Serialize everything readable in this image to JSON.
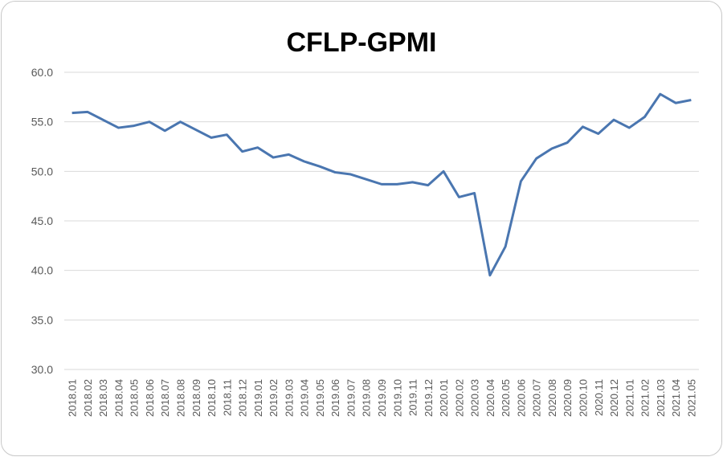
{
  "chart_data": {
    "type": "line",
    "title": "CFLP-GPMI",
    "categories": [
      "2018.01",
      "2018.02",
      "2018.03",
      "2018.04",
      "2018.05",
      "2018.06",
      "2018.07",
      "2018.08",
      "2018.09",
      "2018.10",
      "2018.11",
      "2018.12",
      "2019.01",
      "2019.02",
      "2019.03",
      "2019.04",
      "2019.05",
      "2019.06",
      "2019.07",
      "2019.08",
      "2019.09",
      "2019.10",
      "2019.11",
      "2019.12",
      "2020.01",
      "2020.02",
      "2020.03",
      "2020.04",
      "2020.05",
      "2020.06",
      "2020.07",
      "2020.08",
      "2020.09",
      "2020.10",
      "2020.11",
      "2020.12",
      "2021.01",
      "2021.02",
      "2021.03",
      "2021.04",
      "2021.05"
    ],
    "series": [
      {
        "name": "CFLP-GPMI",
        "color": "#4a76b0",
        "values": [
          55.9,
          56.0,
          55.2,
          54.4,
          54.6,
          55.0,
          54.1,
          55.0,
          54.2,
          53.4,
          53.7,
          52.0,
          52.4,
          51.4,
          51.7,
          51.0,
          50.5,
          49.9,
          49.7,
          49.2,
          48.7,
          48.7,
          48.9,
          48.6,
          50.0,
          47.4,
          47.8,
          39.5,
          42.4,
          49.0,
          51.3,
          52.3,
          52.9,
          54.5,
          53.8,
          55.2,
          54.4,
          55.5,
          57.8,
          56.9,
          57.2
        ]
      }
    ],
    "ylim": [
      30,
      60
    ],
    "yticks": [
      {
        "value": 30,
        "label": "30.0"
      },
      {
        "value": 35,
        "label": "35.0"
      },
      {
        "value": 40,
        "label": "40.0"
      },
      {
        "value": 45,
        "label": "45.0"
      },
      {
        "value": 50,
        "label": "50.0"
      },
      {
        "value": 55,
        "label": "55.0"
      },
      {
        "value": 60,
        "label": "60.0"
      }
    ],
    "grid": true
  }
}
